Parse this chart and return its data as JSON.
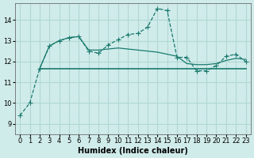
{
  "bg_color": "#d0ecea",
  "grid_color": "#b0d8d4",
  "line_color": "#1a7a6e",
  "xlabel": "Humidex (Indice chaleur)",
  "ylim": [
    8.5,
    14.8
  ],
  "xlim": [
    -0.5,
    23.5
  ],
  "yticks": [
    9,
    10,
    11,
    12,
    13,
    14
  ],
  "xticks": [
    0,
    1,
    2,
    3,
    4,
    5,
    6,
    7,
    8,
    9,
    10,
    11,
    12,
    13,
    14,
    15,
    16,
    17,
    18,
    19,
    20,
    21,
    22,
    23
  ],
  "series": [
    {
      "x": [
        0,
        1,
        2,
        3,
        4,
        5,
        6,
        7,
        8,
        9,
        10,
        11,
        12,
        13,
        14,
        15,
        16,
        17,
        18,
        19,
        20,
        21,
        22,
        23
      ],
      "y": [
        9.4,
        10.0,
        11.65,
        12.75,
        13.0,
        13.15,
        13.2,
        12.5,
        12.4,
        12.8,
        13.05,
        13.3,
        13.35,
        13.65,
        14.55,
        14.45,
        12.2,
        12.2,
        11.55,
        11.55,
        11.8,
        12.25,
        12.35,
        12.0
      ],
      "marker": "+"
    },
    {
      "x": [
        2,
        3,
        4,
        5,
        6,
        7,
        8,
        9,
        10,
        11,
        12,
        13,
        14,
        15,
        16,
        17,
        18,
        19,
        20,
        21,
        22,
        23
      ],
      "y": [
        11.65,
        12.75,
        13.0,
        13.15,
        13.2,
        12.55,
        12.55,
        12.6,
        12.65,
        12.6,
        12.55,
        12.5,
        12.45,
        12.35,
        12.25,
        11.9,
        11.85,
        11.85,
        11.9,
        12.05,
        12.15,
        12.1
      ],
      "marker": null
    },
    {
      "x": [
        2,
        3,
        4,
        5,
        6,
        7,
        8,
        9,
        10,
        11,
        12,
        13,
        14,
        15,
        16,
        17,
        18,
        19,
        20,
        21,
        22,
        23
      ],
      "y": [
        11.65,
        11.65,
        11.65,
        11.65,
        11.65,
        11.65,
        11.65,
        11.65,
        11.65,
        11.65,
        11.65,
        11.65,
        11.65,
        11.65,
        11.65,
        11.65,
        11.65,
        11.65,
        11.65,
        11.65,
        11.65,
        11.65
      ],
      "marker": null
    }
  ]
}
